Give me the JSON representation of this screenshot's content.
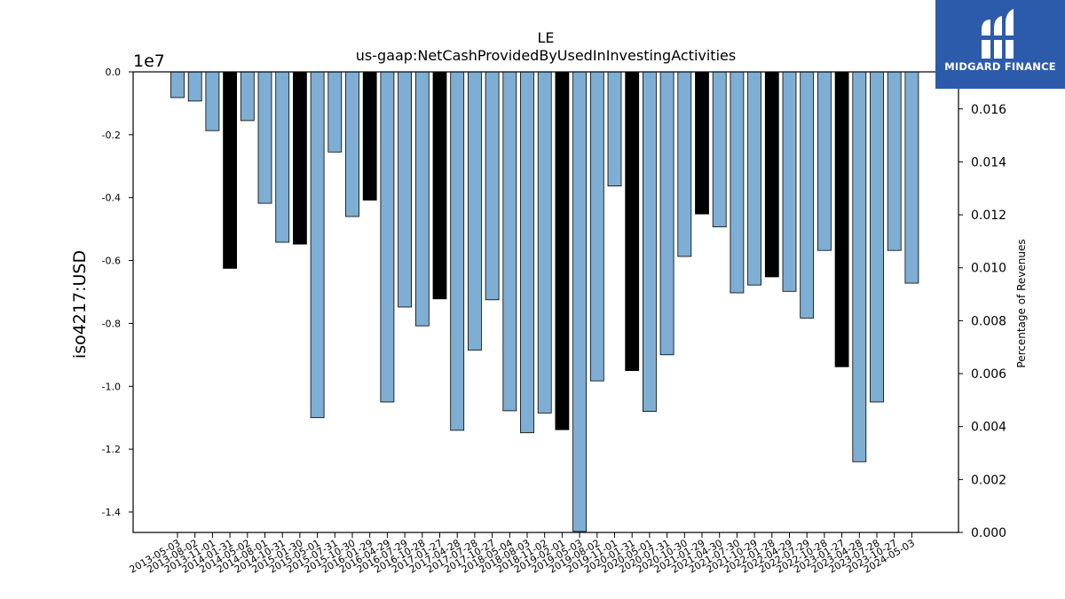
{
  "brand": {
    "name": "MIDGARD FINANCE",
    "background": "#2d5bab",
    "icon": "midgard-m-logo-icon"
  },
  "chart_data": {
    "type": "bar",
    "title": "LE",
    "subtitle": "us-gaap:NetCashProvidedByUsedInInvestingActivities",
    "ylabel": "iso4217:USD",
    "y_scale_label": "1e7",
    "y2label": "Percentage of Revenues",
    "ylim": [
      -14.65,
      0
    ],
    "y2lim": [
      0,
      0.0174
    ],
    "yticks": [
      "0.0",
      "-0.2",
      "-0.4",
      "-0.6",
      "-0.8",
      "-1.0",
      "-1.2",
      "-1.4"
    ],
    "y2ticks": [
      "0.000",
      "0.002",
      "0.004",
      "0.006",
      "0.008",
      "0.010",
      "0.012",
      "0.014",
      "0.016"
    ],
    "colors": {
      "quarter": "#7eaed3",
      "annual": "#000000",
      "edge": "#000000"
    },
    "categories": [
      "2013-05-03",
      "2013-08-02",
      "2013-11-01",
      "2014-01-31",
      "2014-05-02",
      "2014-08-01",
      "2014-10-31",
      "2015-01-30",
      "2015-05-01",
      "2015-07-31",
      "2015-10-30",
      "2016-01-29",
      "2016-04-29",
      "2016-07-29",
      "2016-10-28",
      "2017-01-27",
      "2017-04-28",
      "2017-07-28",
      "2017-10-27",
      "2018-05-04",
      "2018-08-03",
      "2018-11-02",
      "2019-02-01",
      "2019-05-03",
      "2019-08-02",
      "2019-11-01",
      "2020-01-31",
      "2020-05-01",
      "2020-07-31",
      "2020-10-30",
      "2021-01-29",
      "2021-04-30",
      "2021-07-30",
      "2021-10-29",
      "2022-01-28",
      "2022-04-29",
      "2022-07-29",
      "2022-10-28",
      "2023-01-27",
      "2023-04-28",
      "2023-07-28",
      "2023-10-27",
      "2024-05-03"
    ],
    "values": [
      -0.82,
      -0.93,
      -1.87,
      -6.25,
      -1.55,
      -4.18,
      -5.42,
      -5.48,
      -11.0,
      -2.55,
      -4.6,
      -4.08,
      -10.5,
      -7.48,
      -8.08,
      -7.22,
      -11.4,
      -8.85,
      -7.25,
      -10.78,
      -11.48,
      -10.85,
      -11.38,
      -14.62,
      -9.83,
      -3.63,
      -9.5,
      -10.8,
      -9.0,
      -5.87,
      -4.52,
      -4.93,
      -7.03,
      -6.78,
      -6.52,
      -6.98,
      -7.83,
      -5.68,
      -9.38,
      -12.4,
      -10.5,
      -5.68,
      -6.72
    ],
    "bar_kind": [
      "q",
      "q",
      "q",
      "a",
      "q",
      "q",
      "q",
      "a",
      "q",
      "q",
      "q",
      "a",
      "q",
      "q",
      "q",
      "a",
      "q",
      "q",
      "q",
      "q",
      "q",
      "q",
      "a",
      "q",
      "q",
      "q",
      "a",
      "q",
      "q",
      "q",
      "a",
      "q",
      "q",
      "q",
      "a",
      "q",
      "q",
      "q",
      "a",
      "q",
      "q",
      "q",
      "q"
    ]
  }
}
